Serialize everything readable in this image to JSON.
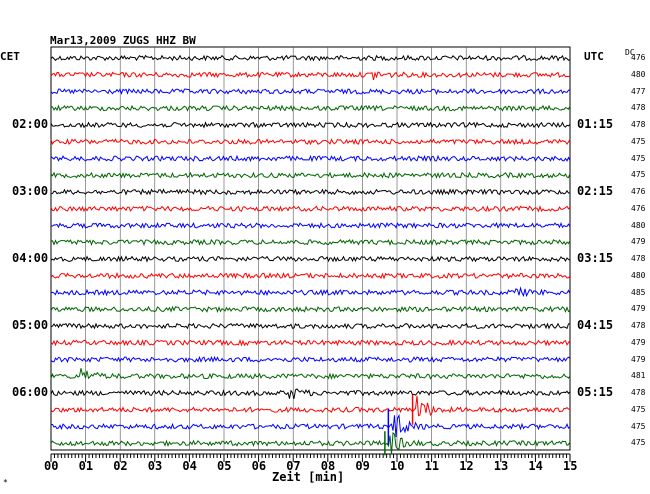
{
  "header": {
    "title": "Mar13,2009   ZUGS HHZ BW",
    "left_tz": "CET",
    "right_tz": "UTC",
    "dc_label": "DC"
  },
  "footer": {
    "xlabel": "Zeit [min]",
    "corner_mark": "*"
  },
  "colors": {
    "black": "#000000",
    "red": "#ff0000",
    "blue": "#0000ff",
    "green": "#006400",
    "grid": "#000000"
  },
  "chart_data": {
    "type": "line",
    "title": "Mar13,2009   ZUGS HHZ BW",
    "xlabel": "Zeit [min]",
    "ylabel": "",
    "xlim": [
      0,
      15
    ],
    "x_ticks": [
      "00",
      "01",
      "02",
      "03",
      "04",
      "05",
      "06",
      "07",
      "08",
      "09",
      "10",
      "11",
      "12",
      "13",
      "14",
      "15"
    ],
    "trace_colors": [
      "black",
      "red",
      "blue",
      "green"
    ],
    "time_labels_left": [
      {
        "trace": 4,
        "label": "02:00"
      },
      {
        "trace": 8,
        "label": "03:00"
      },
      {
        "trace": 12,
        "label": "04:00"
      },
      {
        "trace": 16,
        "label": "05:00"
      },
      {
        "trace": 20,
        "label": "06:00"
      }
    ],
    "time_labels_right": [
      {
        "trace": 4,
        "label": "01:15"
      },
      {
        "trace": 8,
        "label": "02:15"
      },
      {
        "trace": 12,
        "label": "03:15"
      },
      {
        "trace": 16,
        "label": "04:15"
      },
      {
        "trace": 20,
        "label": "05:15"
      }
    ],
    "dc_values": [
      "476",
      "480",
      "477",
      "478",
      "478",
      "475",
      "475",
      "475",
      "476",
      "476",
      "480",
      "479",
      "478",
      "480",
      "485",
      "479",
      "478",
      "479",
      "479",
      "481",
      "478",
      "475",
      "475",
      "475"
    ],
    "events": [
      {
        "trace": 1,
        "minute": 9.3,
        "amplitude": 1.5
      },
      {
        "trace": 14,
        "minute": 13.4,
        "amplitude": 1.5
      },
      {
        "trace": 19,
        "minute": 0.9,
        "amplitude": 2.5
      },
      {
        "trace": 20,
        "minute": 6.9,
        "amplitude": 2
      },
      {
        "trace": 21,
        "minute": 10.6,
        "amplitude": 5
      },
      {
        "trace": 22,
        "minute": 9.9,
        "amplitude": 6
      },
      {
        "trace": 23,
        "minute": 9.8,
        "amplitude": 4
      }
    ]
  }
}
